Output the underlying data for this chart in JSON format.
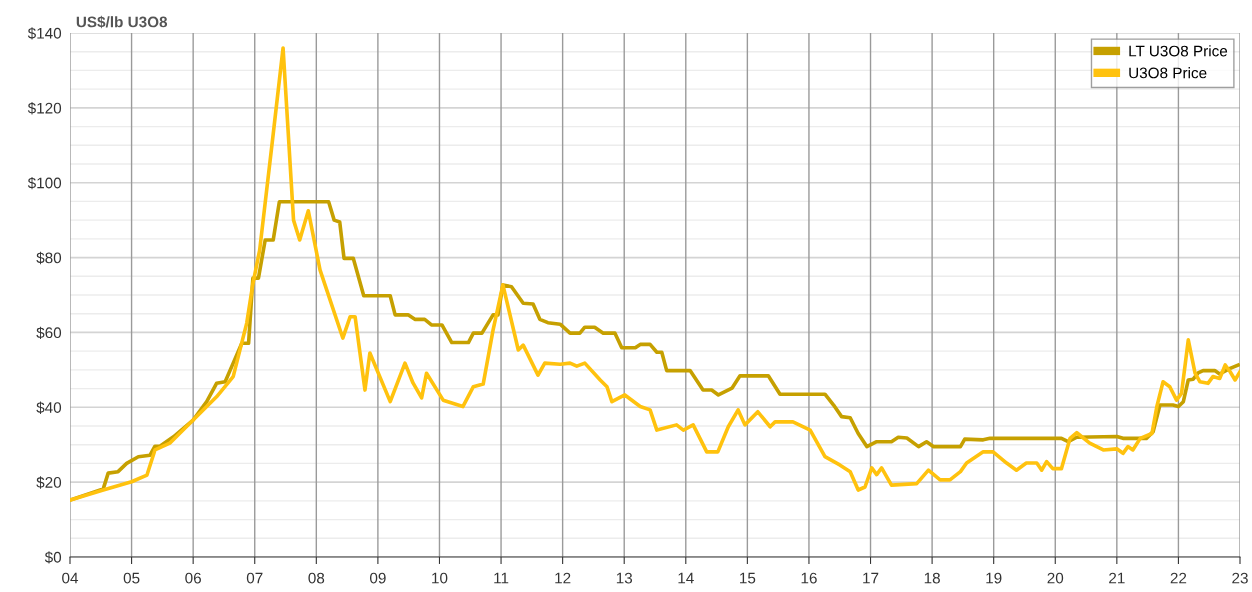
{
  "chart_data": {
    "type": "line",
    "ylabel": "US$/lb U3O8",
    "xlim": [
      2004,
      2023
    ],
    "xticks": [
      {
        "value": 2004,
        "label": "04"
      },
      {
        "value": 2005,
        "label": "05"
      },
      {
        "value": 2006,
        "label": "06"
      },
      {
        "value": 2007,
        "label": "07"
      },
      {
        "value": 2008,
        "label": "08"
      },
      {
        "value": 2009,
        "label": "09"
      },
      {
        "value": 2010,
        "label": "10"
      },
      {
        "value": 2011,
        "label": "11"
      },
      {
        "value": 2012,
        "label": "12"
      },
      {
        "value": 2013,
        "label": "13"
      },
      {
        "value": 2014,
        "label": "14"
      },
      {
        "value": 2015,
        "label": "15"
      },
      {
        "value": 2016,
        "label": "16"
      },
      {
        "value": 2017,
        "label": "17"
      },
      {
        "value": 2018,
        "label": "18"
      },
      {
        "value": 2019,
        "label": "19"
      },
      {
        "value": 2020,
        "label": "20"
      },
      {
        "value": 2021,
        "label": "21"
      },
      {
        "value": 2022,
        "label": "22"
      },
      {
        "value": 2023,
        "label": "23"
      }
    ],
    "ylim": [
      0,
      140
    ],
    "yticks": [
      {
        "value": 0,
        "label": "$0"
      },
      {
        "value": 5,
        "label": null
      },
      {
        "value": 10,
        "label": null
      },
      {
        "value": 15,
        "label": null
      },
      {
        "value": 20,
        "label": "$20"
      },
      {
        "value": 25,
        "label": null
      },
      {
        "value": 30,
        "label": null
      },
      {
        "value": 35,
        "label": null
      },
      {
        "value": 40,
        "label": "$40"
      },
      {
        "value": 45,
        "label": null
      },
      {
        "value": 50,
        "label": null
      },
      {
        "value": 55,
        "label": null
      },
      {
        "value": 60,
        "label": "$60"
      },
      {
        "value": 65,
        "label": null
      },
      {
        "value": 70,
        "label": null
      },
      {
        "value": 75,
        "label": null
      },
      {
        "value": 80,
        "label": "$80"
      },
      {
        "value": 85,
        "label": null
      },
      {
        "value": 90,
        "label": null
      },
      {
        "value": 95,
        "label": null
      },
      {
        "value": 100,
        "label": "$100"
      },
      {
        "value": 105,
        "label": null
      },
      {
        "value": 110,
        "label": null
      },
      {
        "value": 115,
        "label": null
      },
      {
        "value": 120,
        "label": "$120"
      },
      {
        "value": 125,
        "label": null
      },
      {
        "value": 130,
        "label": null
      },
      {
        "value": 135,
        "label": null
      },
      {
        "value": 140,
        "label": "$140"
      }
    ],
    "grid": true,
    "legend": "top right",
    "marker": "none",
    "line_style": "solid",
    "series": [
      {
        "name": "LT U3O8 Price",
        "color": "#c6a000",
        "x": [
          2004.0,
          2004.54,
          2004.62,
          2004.78,
          2004.92,
          2005.11,
          2005.3,
          2005.38,
          2005.46,
          2005.68,
          2006.0,
          2006.22,
          2006.38,
          2006.52,
          2006.65,
          2006.79,
          2006.9,
          2006.97,
          2007.06,
          2007.17,
          2007.3,
          2007.4,
          2008.2,
          2008.29,
          2008.38,
          2008.45,
          2008.6,
          2008.77,
          2009.2,
          2009.28,
          2009.49,
          2009.6,
          2009.76,
          2009.87,
          2010.04,
          2010.2,
          2010.47,
          2010.55,
          2010.69,
          2010.87,
          2010.95,
          2011.03,
          2011.17,
          2011.36,
          2011.52,
          2011.63,
          2011.76,
          2011.96,
          2012.12,
          2012.28,
          2012.36,
          2012.52,
          2012.66,
          2012.85,
          2012.96,
          2013.18,
          2013.26,
          2013.42,
          2013.53,
          2013.61,
          2013.69,
          2014.07,
          2014.28,
          2014.42,
          2014.53,
          2014.75,
          2014.88,
          2015.34,
          2015.53,
          2016.26,
          2016.4,
          2016.53,
          2016.67,
          2016.8,
          2016.94,
          2017.1,
          2017.34,
          2017.45,
          2017.59,
          2017.78,
          2017.91,
          2018.02,
          2018.46,
          2018.53,
          2018.83,
          2018.94,
          2020.1,
          2020.21,
          2020.35,
          2021.0,
          2021.1,
          2021.48,
          2021.59,
          2021.7,
          2021.91,
          2022.0,
          2022.08,
          2022.16,
          2022.24,
          2022.32,
          2022.4,
          2022.59,
          2022.67,
          2022.84,
          2022.97
        ],
        "values": [
          15.2,
          18.2,
          22.4,
          22.8,
          25.0,
          26.8,
          27.2,
          29.6,
          29.6,
          32.1,
          36.6,
          41.5,
          46.4,
          46.8,
          51.8,
          57.1,
          57.1,
          74.5,
          74.5,
          84.7,
          84.7,
          94.9,
          94.9,
          90.0,
          89.5,
          79.8,
          79.8,
          69.8,
          69.8,
          64.7,
          64.7,
          63.5,
          63.5,
          62.0,
          62.0,
          57.3,
          57.3,
          59.8,
          59.8,
          64.7,
          64.7,
          72.7,
          72.2,
          67.8,
          67.6,
          63.5,
          62.6,
          62.2,
          59.8,
          59.8,
          61.4,
          61.4,
          59.8,
          59.8,
          55.9,
          55.9,
          56.8,
          56.8,
          54.7,
          54.7,
          49.8,
          49.8,
          44.6,
          44.6,
          43.3,
          45.1,
          48.4,
          48.4,
          43.5,
          43.5,
          40.6,
          37.5,
          37.2,
          33.0,
          29.5,
          30.8,
          30.8,
          32.0,
          31.8,
          29.5,
          30.8,
          29.5,
          29.5,
          31.5,
          31.3,
          31.7,
          31.7,
          30.8,
          32.0,
          32.2,
          31.7,
          31.7,
          33.5,
          40.6,
          40.6,
          40.2,
          41.5,
          47.3,
          47.5,
          49.2,
          49.8,
          49.8,
          48.9,
          50.4,
          51.3
        ]
      },
      {
        "name": "U3O8 Price",
        "color": "#ffc20e",
        "x": [
          2004.0,
          2004.54,
          2005.0,
          2005.25,
          2005.38,
          2005.62,
          2006.0,
          2006.38,
          2006.65,
          2006.87,
          2006.97,
          2007.08,
          2007.3,
          2007.46,
          2007.63,
          2007.73,
          2007.87,
          2008.06,
          2008.17,
          2008.43,
          2008.55,
          2008.63,
          2008.79,
          2008.87,
          2009.2,
          2009.44,
          2009.57,
          2009.71,
          2009.79,
          2010.06,
          2010.38,
          2010.55,
          2010.71,
          2010.87,
          2011.03,
          2011.28,
          2011.36,
          2011.6,
          2011.71,
          2011.96,
          2012.12,
          2012.23,
          2012.36,
          2012.61,
          2012.72,
          2012.8,
          2013.01,
          2013.26,
          2013.42,
          2013.53,
          2013.85,
          2013.96,
          2014.12,
          2014.34,
          2014.52,
          2014.69,
          2014.85,
          2014.96,
          2015.17,
          2015.37,
          2015.45,
          2015.74,
          2016.02,
          2016.26,
          2016.5,
          2016.67,
          2016.8,
          2016.91,
          2017.02,
          2017.1,
          2017.18,
          2017.34,
          2017.75,
          2017.94,
          2018.13,
          2018.29,
          2018.46,
          2018.56,
          2018.83,
          2018.99,
          2019.21,
          2019.37,
          2019.53,
          2019.7,
          2019.78,
          2019.86,
          2019.96,
          2020.1,
          2020.24,
          2020.35,
          2020.56,
          2020.78,
          2021.0,
          2021.1,
          2021.18,
          2021.26,
          2021.38,
          2021.57,
          2021.65,
          2021.75,
          2021.86,
          2021.97,
          2022.05,
          2022.16,
          2022.27,
          2022.35,
          2022.48,
          2022.56,
          2022.67,
          2022.76,
          2022.84,
          2022.92,
          2023.0
        ],
        "values": [
          15.2,
          17.9,
          20.1,
          21.9,
          28.6,
          30.4,
          36.6,
          42.8,
          48.2,
          62.5,
          73.0,
          82.0,
          113.0,
          136.0,
          90.0,
          84.7,
          92.5,
          76.7,
          71.3,
          58.5,
          64.2,
          64.2,
          44.6,
          54.5,
          41.5,
          51.8,
          46.5,
          42.5,
          49.1,
          41.9,
          40.2,
          45.5,
          46.2,
          60.6,
          72.7,
          55.3,
          56.6,
          48.6,
          51.8,
          51.5,
          51.8,
          51.0,
          51.8,
          47.3,
          45.5,
          41.5,
          43.3,
          40.2,
          39.3,
          33.9,
          35.3,
          33.9,
          35.3,
          28.1,
          28.1,
          34.8,
          39.3,
          35.3,
          38.8,
          34.8,
          36.1,
          36.1,
          33.9,
          26.8,
          24.6,
          22.8,
          17.9,
          18.7,
          23.8,
          22.0,
          23.8,
          19.2,
          19.6,
          23.2,
          20.6,
          20.6,
          22.8,
          25.1,
          28.1,
          28.1,
          25.1,
          23.2,
          25.1,
          25.1,
          23.2,
          25.5,
          23.6,
          23.6,
          31.7,
          33.2,
          30.4,
          28.6,
          28.9,
          27.7,
          29.5,
          28.6,
          31.7,
          33.0,
          40.2,
          46.8,
          45.5,
          41.9,
          43.7,
          58.0,
          49.1,
          46.8,
          46.4,
          48.2,
          47.7,
          51.3,
          49.5,
          47.3,
          49.5
        ]
      }
    ]
  }
}
